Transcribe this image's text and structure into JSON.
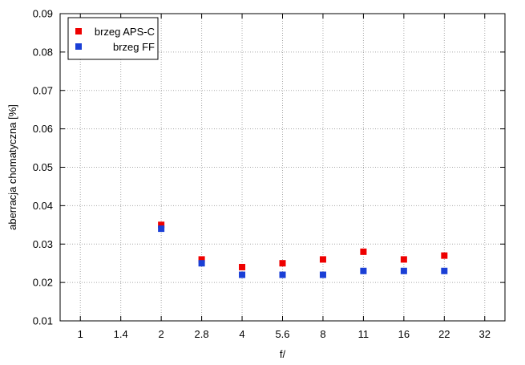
{
  "chart_data": {
    "type": "scatter",
    "title": "",
    "xlabel": "f/",
    "ylabel": "aberracja chomatyczna [%]",
    "categories": [
      "1",
      "1.4",
      "2",
      "2.8",
      "4",
      "5.6",
      "8",
      "11",
      "16",
      "22",
      "32"
    ],
    "ylim": [
      0.01,
      0.09
    ],
    "yticks": [
      "0.01",
      "0.02",
      "0.03",
      "0.04",
      "0.05",
      "0.06",
      "0.07",
      "0.08",
      "0.09"
    ],
    "grid": true,
    "legend_position": "top-left",
    "series": [
      {
        "name": "brzeg APS-C",
        "color": "#ee0000",
        "marker": "square",
        "values": [
          null,
          null,
          0.035,
          0.026,
          0.024,
          0.025,
          0.026,
          0.028,
          0.026,
          0.027,
          null
        ]
      },
      {
        "name": "brzeg FF",
        "color": "#1a3fd6",
        "marker": "square",
        "values": [
          null,
          null,
          0.034,
          0.025,
          0.022,
          0.022,
          0.022,
          0.023,
          0.023,
          0.023,
          null
        ]
      }
    ]
  }
}
